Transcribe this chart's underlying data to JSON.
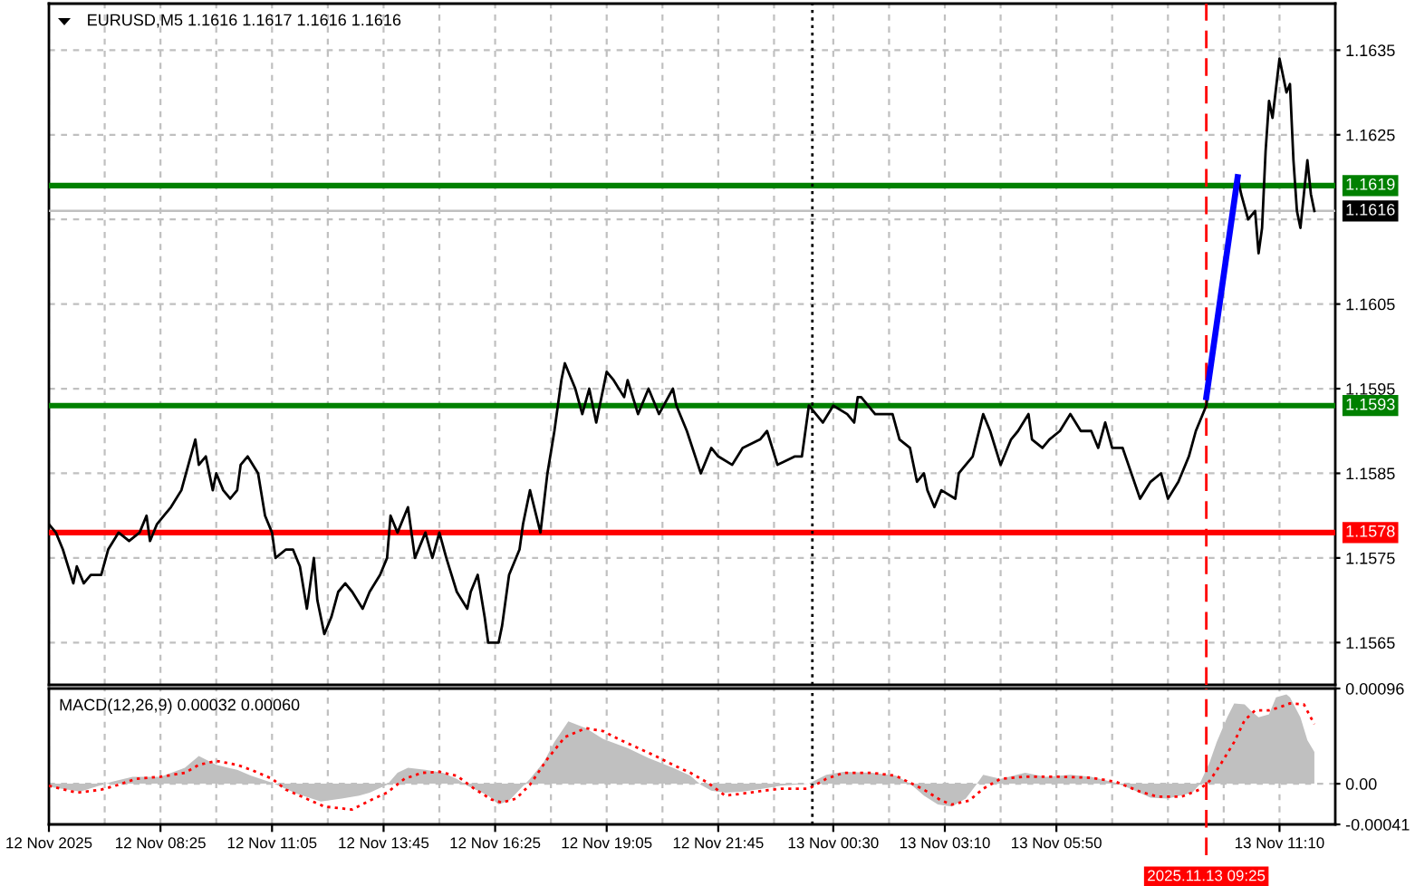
{
  "chart_data": [
    {
      "type": "line",
      "title": "EURUSD,M5 1.1616 1.1617 1.1616 1.1616",
      "series": [
        {
          "color": "#000000",
          "x": [
            "2025-11-12T05:45",
            "2025-11-12T05:55",
            "2025-11-12T06:05",
            "2025-11-12T06:20",
            "2025-11-12T06:25",
            "2025-11-12T06:35",
            "2025-11-12T06:45",
            "2025-11-12T07:00",
            "2025-11-12T07:10",
            "2025-11-12T07:25",
            "2025-11-12T07:40",
            "2025-11-12T07:55",
            "2025-11-12T08:05",
            "2025-11-12T08:10",
            "2025-11-12T08:20",
            "2025-11-12T08:30",
            "2025-11-12T08:40",
            "2025-11-12T08:55",
            "2025-11-12T09:05",
            "2025-11-12T09:15",
            "2025-11-12T09:20",
            "2025-11-12T09:30",
            "2025-11-12T09:40",
            "2025-11-12T09:45",
            "2025-11-12T09:55",
            "2025-11-12T10:05",
            "2025-11-12T10:15",
            "2025-11-12T10:20",
            "2025-11-12T10:30",
            "2025-11-12T10:45",
            "2025-11-12T10:55",
            "2025-11-12T11:05",
            "2025-11-12T11:10",
            "2025-11-12T11:25",
            "2025-11-12T11:35",
            "2025-11-12T11:45",
            "2025-11-12T11:55",
            "2025-11-12T12:05",
            "2025-11-12T12:10",
            "2025-11-12T12:20",
            "2025-11-12T12:30",
            "2025-11-12T12:40",
            "2025-11-12T12:50",
            "2025-11-12T13:00",
            "2025-11-12T13:15",
            "2025-11-12T13:25",
            "2025-11-12T13:40",
            "2025-11-12T13:50",
            "2025-11-12T13:55",
            "2025-11-12T14:05",
            "2025-11-12T14:20",
            "2025-11-12T14:30",
            "2025-11-12T14:45",
            "2025-11-12T14:55",
            "2025-11-12T15:05",
            "2025-11-12T15:15",
            "2025-11-12T15:30",
            "2025-11-12T15:45",
            "2025-11-12T15:50",
            "2025-11-12T16:00",
            "2025-11-12T16:10",
            "2025-11-12T16:15",
            "2025-11-12T16:30",
            "2025-11-12T16:35",
            "2025-11-12T16:45",
            "2025-11-12T17:00",
            "2025-11-12T17:05",
            "2025-11-12T17:15",
            "2025-11-12T17:30",
            "2025-11-12T17:40",
            "2025-11-12T17:50",
            "2025-11-12T18:00",
            "2025-11-12T18:05",
            "2025-11-12T18:20",
            "2025-11-12T18:30",
            "2025-11-12T18:40",
            "2025-11-12T18:50",
            "2025-11-12T19:05",
            "2025-11-12T19:15",
            "2025-11-12T19:30",
            "2025-11-12T19:35",
            "2025-11-12T19:50",
            "2025-11-12T20:05",
            "2025-11-12T20:20",
            "2025-11-12T20:40",
            "2025-11-12T20:45",
            "2025-11-12T21:00",
            "2025-11-12T21:20",
            "2025-11-12T21:35",
            "2025-11-12T21:45",
            "2025-11-12T22:05",
            "2025-11-12T22:20",
            "2025-11-12T22:45",
            "2025-11-12T22:55",
            "2025-11-12T23:10",
            "2025-11-12T23:35",
            "2025-11-12T23:45",
            "2025-11-12T23:55",
            "2025-11-13T00:15",
            "2025-11-13T00:30",
            "2025-11-13T00:50",
            "2025-11-13T01:00",
            "2025-11-13T01:05",
            "2025-11-13T01:10",
            "2025-11-13T01:30",
            "2025-11-13T01:55",
            "2025-11-13T02:05",
            "2025-11-13T02:20",
            "2025-11-13T02:30",
            "2025-11-13T02:40",
            "2025-11-13T02:45",
            "2025-11-13T02:55",
            "2025-11-13T03:05",
            "2025-11-13T03:25",
            "2025-11-13T03:30",
            "2025-11-13T03:50",
            "2025-11-13T04:05",
            "2025-11-13T04:15",
            "2025-11-13T04:30",
            "2025-11-13T04:45",
            "2025-11-13T04:55",
            "2025-11-13T05:10",
            "2025-11-13T05:15",
            "2025-11-13T05:30",
            "2025-11-13T05:40",
            "2025-11-13T05:55",
            "2025-11-13T06:10",
            "2025-11-13T06:25",
            "2025-11-13T06:40",
            "2025-11-13T06:50",
            "2025-11-13T07:00",
            "2025-11-13T07:10",
            "2025-11-13T07:25",
            "2025-11-13T07:50",
            "2025-11-13T08:05",
            "2025-11-13T08:20",
            "2025-11-13T08:30",
            "2025-11-13T08:45",
            "2025-11-13T09:00",
            "2025-11-13T09:10",
            "2025-11-13T09:25",
            "2025-11-13T10:10",
            "2025-11-13T10:15",
            "2025-11-13T10:25",
            "2025-11-13T10:35",
            "2025-11-13T10:40",
            "2025-11-13T10:45",
            "2025-11-13T10:50",
            "2025-11-13T10:55",
            "2025-11-13T11:00",
            "2025-11-13T11:10",
            "2025-11-13T11:15",
            "2025-11-13T11:20",
            "2025-11-13T11:25",
            "2025-11-13T11:30",
            "2025-11-13T11:35",
            "2025-11-13T11:40",
            "2025-11-13T11:45",
            "2025-11-13T11:50",
            "2025-11-13T11:55",
            "2025-11-13T12:00"
          ],
          "values": [
            1.1579,
            1.1578,
            1.1576,
            1.1572,
            1.1574,
            1.1572,
            1.1573,
            1.1573,
            1.1576,
            1.1578,
            1.1577,
            1.1578,
            1.158,
            1.1577,
            1.1579,
            1.158,
            1.1581,
            1.1583,
            1.1586,
            1.1589,
            1.1586,
            1.1587,
            1.1583,
            1.1585,
            1.1583,
            1.1582,
            1.1583,
            1.1586,
            1.1587,
            1.1585,
            1.158,
            1.1578,
            1.1575,
            1.1576,
            1.1576,
            1.1574,
            1.1569,
            1.1575,
            1.157,
            1.1566,
            1.1568,
            1.1571,
            1.1572,
            1.1571,
            1.1569,
            1.1571,
            1.1573,
            1.1575,
            1.158,
            1.1578,
            1.1581,
            1.1575,
            1.1578,
            1.1575,
            1.1578,
            1.1575,
            1.1571,
            1.1569,
            1.1571,
            1.1573,
            1.1568,
            1.1565,
            1.1565,
            1.1567,
            1.1573,
            1.1576,
            1.1579,
            1.1583,
            1.1578,
            1.1585,
            1.159,
            1.1596,
            1.1598,
            1.1595,
            1.1592,
            1.1595,
            1.1591,
            1.1597,
            1.1596,
            1.1594,
            1.1596,
            1.1592,
            1.1595,
            1.1592,
            1.1595,
            1.1593,
            1.159,
            1.1585,
            1.1588,
            1.1587,
            1.1586,
            1.1588,
            1.1589,
            1.159,
            1.1586,
            1.1587,
            1.1587,
            1.1593,
            1.1591,
            1.1593,
            1.1592,
            1.1591,
            1.1594,
            1.1594,
            1.1592,
            1.1592,
            1.1589,
            1.1588,
            1.1584,
            1.1585,
            1.1583,
            1.1581,
            1.1583,
            1.1582,
            1.1585,
            1.1587,
            1.1592,
            1.159,
            1.1586,
            1.1589,
            1.159,
            1.1592,
            1.1589,
            1.1588,
            1.1589,
            1.159,
            1.1592,
            1.159,
            1.159,
            1.1588,
            1.1591,
            1.1588,
            1.1588,
            1.1582,
            1.1584,
            1.1585,
            1.1582,
            1.1584,
            1.1587,
            1.159,
            1.1593,
            1.162,
            1.1618,
            1.1615,
            1.1616,
            1.1611,
            1.1614,
            1.1623,
            1.1629,
            1.1627,
            1.1634,
            1.1632,
            1.163,
            1.1631,
            1.1622,
            1.1616,
            1.1614,
            1.1618,
            1.1622,
            1.1618,
            1.1616
          ]
        },
        {
          "color": "#0000ff",
          "x": [
            "2025-11-13T09:25",
            "2025-11-13T10:10"
          ],
          "values": [
            1.1594,
            1.162
          ]
        }
      ],
      "xlim": [
        "2025-11-12T05:45",
        "2025-11-13T12:30"
      ],
      "ylim": [
        1.156,
        1.16405
      ],
      "xticks": [
        {
          "value": "2025-11-12T05:45",
          "label": null
        },
        {
          "value": "2025-11-12T07:05",
          "label": null
        },
        {
          "value": "2025-11-12T08:25",
          "label": null
        },
        {
          "value": "2025-11-12T09:45",
          "label": null
        },
        {
          "value": "2025-11-12T11:05",
          "label": null
        },
        {
          "value": "2025-11-12T12:25",
          "label": null
        },
        {
          "value": "2025-11-12T13:45",
          "label": null
        },
        {
          "value": "2025-11-12T15:05",
          "label": null
        },
        {
          "value": "2025-11-12T16:25",
          "label": null
        },
        {
          "value": "2025-11-12T17:45",
          "label": null
        },
        {
          "value": "2025-11-12T19:05",
          "label": null
        },
        {
          "value": "2025-11-12T20:25",
          "label": null
        },
        {
          "value": "2025-11-12T21:45",
          "label": null
        },
        {
          "value": "2025-11-12T23:05",
          "label": null
        },
        {
          "value": "2025-11-13T00:30",
          "label": null
        },
        {
          "value": "2025-11-13T01:50",
          "label": null
        },
        {
          "value": "2025-11-13T03:10",
          "label": null
        },
        {
          "value": "2025-11-13T04:30",
          "label": null
        },
        {
          "value": "2025-11-13T05:50",
          "label": null
        },
        {
          "value": "2025-11-13T07:10",
          "label": null
        },
        {
          "value": "2025-11-13T08:30",
          "label": null
        },
        {
          "value": "2025-11-13T09:50",
          "label": null
        },
        {
          "value": "2025-11-13T11:10",
          "label": null
        }
      ],
      "yticks": [
        1.1565,
        1.1575,
        1.1585,
        1.1595,
        1.1605,
        {
          "value": 1.1615,
          "label": null
        },
        1.1625,
        1.1635
      ],
      "ref_lines": [
        {
          "axis": "y",
          "value": 1.1619,
          "label": "1.1619",
          "color": "#008000"
        },
        {
          "axis": "y",
          "value": 1.1616,
          "label": "1.1616",
          "color": "#c0c0c0"
        },
        {
          "axis": "y",
          "value": 1.1593,
          "label": "1.1593",
          "color": "#008000"
        },
        {
          "axis": "y",
          "value": 1.1578,
          "label": "1.1578",
          "color": "#ff0000"
        },
        {
          "axis": "x",
          "value": "2025-11-13T00:00",
          "color": "#000000",
          "line_style": "dotted"
        },
        {
          "axis": "x",
          "value": "2025-11-13T09:25",
          "color": "#ff0000",
          "line_style": "dashed"
        }
      ],
      "grid": true,
      "tick_labels": "y"
    },
    {
      "type": "area",
      "title": "MACD(12,26,9) 0.00032 0.00060",
      "series": [
        {
          "color": "#c0c0c0",
          "x": [
            "2025-11-12T05:45",
            "2025-11-12T06:30",
            "2025-11-12T07:15",
            "2025-11-12T07:45",
            "2025-11-12T08:25",
            "2025-11-12T09:00",
            "2025-11-12T09:20",
            "2025-11-12T09:45",
            "2025-11-12T10:15",
            "2025-11-12T10:35",
            "2025-11-12T11:05",
            "2025-11-12T11:40",
            "2025-11-12T12:15",
            "2025-11-12T12:45",
            "2025-11-12T13:10",
            "2025-11-12T13:25",
            "2025-11-12T13:50",
            "2025-11-12T14:05",
            "2025-11-12T14:20",
            "2025-11-12T14:45",
            "2025-11-12T15:10",
            "2025-11-12T15:30",
            "2025-11-12T15:45",
            "2025-11-12T16:15",
            "2025-11-12T16:30",
            "2025-11-12T16:45",
            "2025-11-12T17:00",
            "2025-11-12T17:15",
            "2025-11-12T17:35",
            "2025-11-12T17:50",
            "2025-11-12T18:10",
            "2025-11-12T18:35",
            "2025-11-12T19:00",
            "2025-11-12T19:35",
            "2025-11-12T20:05",
            "2025-11-12T20:40",
            "2025-11-12T21:05",
            "2025-11-12T21:20",
            "2025-11-12T21:35",
            "2025-11-12T21:55",
            "2025-11-12T22:20",
            "2025-11-12T22:50",
            "2025-11-12T23:15",
            "2025-11-12T23:55",
            "2025-11-13T00:20",
            "2025-11-13T00:45",
            "2025-11-13T01:25",
            "2025-11-13T02:00",
            "2025-11-13T02:20",
            "2025-11-13T02:40",
            "2025-11-13T03:00",
            "2025-11-13T03:20",
            "2025-11-13T03:40",
            "2025-11-13T03:55",
            "2025-11-13T04:05",
            "2025-11-13T04:30",
            "2025-11-13T05:05",
            "2025-11-13T05:35",
            "2025-11-13T06:10",
            "2025-11-13T06:40",
            "2025-11-13T07:15",
            "2025-11-13T07:40",
            "2025-11-13T08:05",
            "2025-11-13T08:30",
            "2025-11-13T09:05",
            "2025-11-13T09:15",
            "2025-11-13T09:30",
            "2025-11-13T09:40",
            "2025-11-13T09:55",
            "2025-11-13T10:05",
            "2025-11-13T10:20",
            "2025-11-13T10:30",
            "2025-11-13T10:40",
            "2025-11-13T10:55",
            "2025-11-13T11:05",
            "2025-11-13T11:20",
            "2025-11-13T11:25",
            "2025-11-13T11:40",
            "2025-11-13T11:50",
            "2025-11-13T12:00"
          ],
          "values": [
            -3e-05,
            -8e-05,
            2e-05,
            7e-05,
            7e-05,
            0.00016,
            0.00028,
            0.00019,
            0.00014,
            8e-05,
            1e-05,
            -0.0001,
            -0.00018,
            -0.00015,
            -0.00012,
            -9e-05,
            -1e-05,
            0.00011,
            0.00016,
            0.00014,
            0.00011,
            5e-05,
            -2e-05,
            -0.00012,
            -0.00021,
            -0.00017,
            -6e-05,
            5e-05,
            0.00022,
            0.00042,
            0.00063,
            0.00056,
            0.00045,
            0.00036,
            0.00026,
            0.00016,
            8e-05,
            -1e-05,
            -7e-05,
            -9e-05,
            -8e-05,
            -5e-05,
            -2e-05,
            0.0,
            9e-05,
            0.00012,
            0.00011,
            8e-05,
            0.0,
            -0.00012,
            -0.00021,
            -0.00023,
            -0.00015,
            -1e-05,
            9e-05,
            5e-05,
            0.00011,
            7e-05,
            9e-05,
            7e-05,
            1e-05,
            -6e-05,
            -0.00014,
            -0.00015,
            -9e-05,
            -1e-05,
            0.00022,
            0.00042,
            0.00067,
            0.00081,
            0.0008,
            0.00073,
            0.00067,
            0.0007,
            0.00087,
            0.0009,
            0.00087,
            0.00067,
            0.00044,
            0.00032
          ]
        },
        {
          "type": "line",
          "color": "#ff0000",
          "line_style": "dotted",
          "x": [
            "2025-11-12T05:45",
            "2025-11-12T06:25",
            "2025-11-12T07:00",
            "2025-11-12T07:25",
            "2025-11-12T07:50",
            "2025-11-12T08:25",
            "2025-11-12T09:00",
            "2025-11-12T09:20",
            "2025-11-12T09:45",
            "2025-11-12T10:15",
            "2025-11-12T10:35",
            "2025-11-12T11:05",
            "2025-11-12T11:25",
            "2025-11-12T12:20",
            "2025-11-12T13:00",
            "2025-11-12T13:25",
            "2025-11-12T13:50",
            "2025-11-12T14:15",
            "2025-11-12T14:40",
            "2025-11-12T15:05",
            "2025-11-12T15:30",
            "2025-11-12T15:55",
            "2025-11-12T16:20",
            "2025-11-12T16:35",
            "2025-11-12T16:55",
            "2025-11-12T17:15",
            "2025-11-12T17:40",
            "2025-11-12T18:05",
            "2025-11-12T18:35",
            "2025-11-12T19:00",
            "2025-11-12T19:25",
            "2025-11-12T19:50",
            "2025-11-12T20:15",
            "2025-11-12T20:40",
            "2025-11-12T21:05",
            "2025-11-12T21:30",
            "2025-11-12T21:55",
            "2025-11-12T22:20",
            "2025-11-12T22:50",
            "2025-11-12T23:15",
            "2025-11-12T23:55",
            "2025-11-13T00:20",
            "2025-11-13T00:45",
            "2025-11-13T01:25",
            "2025-11-13T02:00",
            "2025-11-13T02:20",
            "2025-11-13T02:40",
            "2025-11-13T03:05",
            "2025-11-13T03:20",
            "2025-11-13T03:45",
            "2025-11-13T04:05",
            "2025-11-13T04:30",
            "2025-11-13T05:05",
            "2025-11-13T05:55",
            "2025-11-13T06:40",
            "2025-11-13T07:15",
            "2025-11-13T07:50",
            "2025-11-13T08:15",
            "2025-11-13T08:50",
            "2025-11-13T09:15",
            "2025-11-13T09:30",
            "2025-11-13T09:45",
            "2025-11-13T10:05",
            "2025-11-13T10:20",
            "2025-11-13T10:35",
            "2025-11-13T10:55",
            "2025-11-13T11:10",
            "2025-11-13T11:25",
            "2025-11-13T11:45",
            "2025-11-13T12:00"
          ],
          "values": [
            -2e-05,
            -9e-05,
            -6e-05,
            -1e-05,
            5e-05,
            7e-05,
            0.00011,
            0.00019,
            0.00023,
            0.00019,
            0.00014,
            5e-05,
            -6e-05,
            -0.00023,
            -0.00026,
            -0.00017,
            -9e-05,
            5e-05,
            0.00011,
            0.00012,
            8e-05,
            -5e-05,
            -0.00016,
            -0.00019,
            -0.00015,
            -1e-05,
            0.00025,
            0.00047,
            0.00056,
            0.00053,
            0.00044,
            0.00036,
            0.00028,
            0.00019,
            0.00011,
            1e-05,
            -0.00012,
            -0.0001,
            -7e-05,
            -5e-05,
            -5e-05,
            5e-05,
            0.00011,
            0.00011,
            8e-05,
            1e-05,
            -6e-05,
            -0.00017,
            -0.00021,
            -0.00017,
            -5e-05,
            5e-05,
            7e-05,
            7e-05,
            6e-05,
            2e-05,
            -8e-05,
            -0.00013,
            -0.00013,
            -6e-05,
            3e-05,
            0.00019,
            0.00042,
            0.00064,
            0.00074,
            0.00074,
            0.00077,
            0.00081,
            0.0008,
            0.0006
          ]
        }
      ],
      "xlim": [
        "2025-11-12T05:45",
        "2025-11-13T12:30"
      ],
      "ylim": [
        -0.00041,
        0.00096
      ],
      "xticks": [
        {
          "value": "2025-11-12T05:45",
          "label": "12 Nov 2025"
        },
        {
          "value": "2025-11-12T07:05",
          "label": null
        },
        {
          "value": "2025-11-12T08:25",
          "label": "12 Nov 08:25"
        },
        {
          "value": "2025-11-12T09:45",
          "label": null
        },
        {
          "value": "2025-11-12T11:05",
          "label": "12 Nov 11:05"
        },
        {
          "value": "2025-11-12T12:25",
          "label": null
        },
        {
          "value": "2025-11-12T13:45",
          "label": "12 Nov 13:45"
        },
        {
          "value": "2025-11-12T15:05",
          "label": null
        },
        {
          "value": "2025-11-12T16:25",
          "label": "12 Nov 16:25"
        },
        {
          "value": "2025-11-12T17:45",
          "label": null
        },
        {
          "value": "2025-11-12T19:05",
          "label": "12 Nov 19:05"
        },
        {
          "value": "2025-11-12T20:25",
          "label": null
        },
        {
          "value": "2025-11-12T21:45",
          "label": "12 Nov 21:45"
        },
        {
          "value": "2025-11-12T23:05",
          "label": null
        },
        {
          "value": "2025-11-13T00:30",
          "label": "13 Nov 00:30"
        },
        {
          "value": "2025-11-13T01:50",
          "label": null
        },
        {
          "value": "2025-11-13T03:10",
          "label": "13 Nov 03:10"
        },
        {
          "value": "2025-11-13T04:30",
          "label": null
        },
        {
          "value": "2025-11-13T05:50",
          "label": "13 Nov 05:50"
        },
        {
          "value": "2025-11-13T07:10",
          "label": null
        },
        {
          "value": "2025-11-13T08:30",
          "label": null
        },
        {
          "value": "2025-11-13T09:50",
          "label": null
        },
        {
          "value": "2025-11-13T11:10",
          "label": "13 Nov 11:10"
        }
      ],
      "yticks": [
        0.00096,
        {
          "value": 0,
          "label": "0.00"
        },
        {
          "value": -0.00041,
          "label": "-0.00041"
        }
      ],
      "ref_lines": [
        {
          "axis": "x",
          "value": "2025-11-13T00:00",
          "color": "#000000",
          "line_style": "dotted"
        },
        {
          "axis": "x",
          "value": "2025-11-13T09:25",
          "label": "2025.11.13 09:25",
          "color": "#ff0000",
          "line_style": "dashed"
        }
      ],
      "grid": true
    }
  ]
}
